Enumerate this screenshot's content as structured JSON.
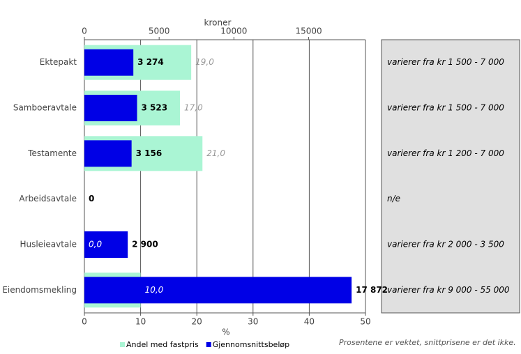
{
  "chart_data": {
    "type": "bar",
    "orientation": "horizontal",
    "categories": [
      "Ektepakt",
      "Samboeravtale",
      "Testamente",
      "Arbeidsavtale",
      "Husleieavtale",
      "Eiendomsmekling"
    ],
    "series": [
      {
        "name": "Andel med fastpris",
        "color": "#aaf5d4",
        "axis": "x",
        "values": [
          19.0,
          17.0,
          21.0,
          null,
          0.0,
          10.0
        ],
        "value_labels": [
          "19,0",
          "17,0",
          "21,0",
          null,
          "0,0",
          "10,0"
        ]
      },
      {
        "name": "Gjennomsnittsbeløp",
        "color": "#0000e6",
        "axis": "x2",
        "values": [
          3274,
          3523,
          3156,
          0,
          2900,
          17872
        ],
        "value_labels": [
          "3 274",
          "3 523",
          "3 156",
          "0",
          "2 900",
          "17 872"
        ]
      }
    ],
    "xlabel": "%",
    "x2label": "kroner",
    "xlim": [
      0,
      50
    ],
    "xticks": [
      0,
      10,
      20,
      30,
      40,
      50
    ],
    "x2lim": [
      0,
      18800
    ],
    "x2ticks": [
      0,
      5000,
      10000,
      15000
    ],
    "grid": true,
    "legend": "bottom",
    "notes": [
      "varierer fra  kr 1 500 - 7 000",
      "varierer fra kr 1 500 - 7 000",
      "varierer fra kr 1 200 - 7 000",
      "n/e",
      "varierer fra kr 2 000 - 3 500",
      "varierer fra kr  9 000 - 55 000"
    ],
    "footnote": "Prosentene er vektet, snittprisene er det ikke."
  }
}
